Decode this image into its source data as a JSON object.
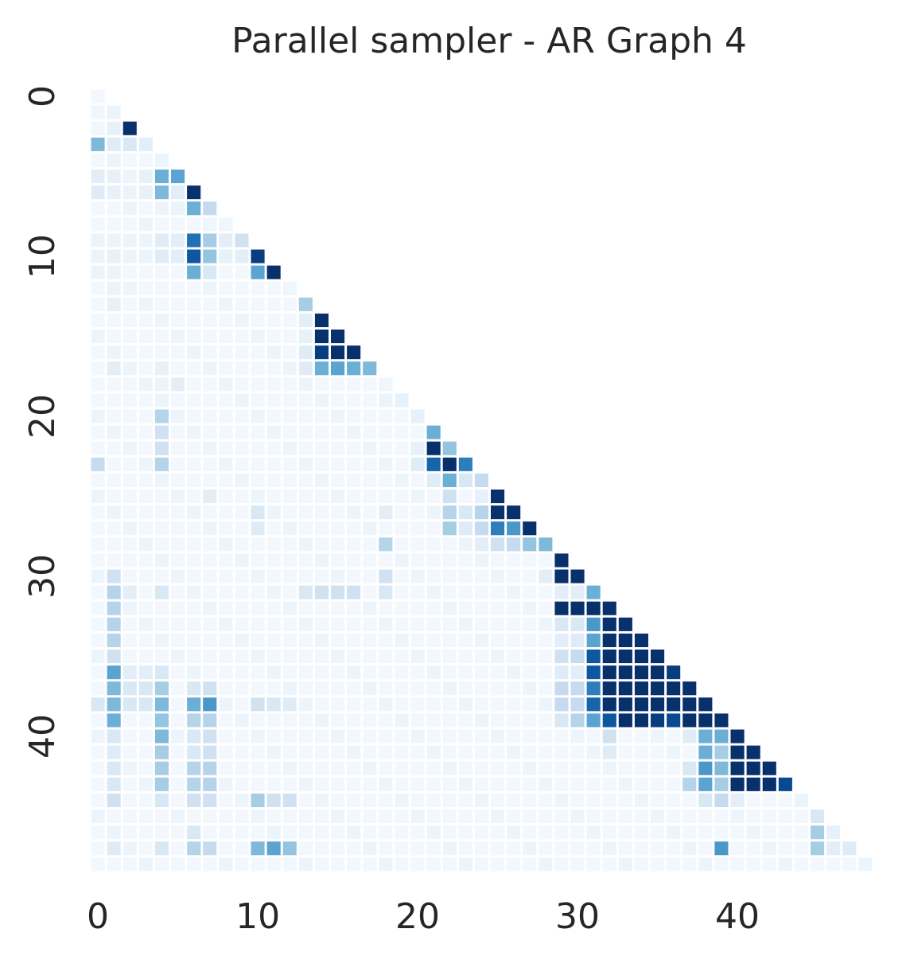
{
  "chart_data": {
    "type": "heatmap",
    "title": "Parallel sampler - AR Graph 4",
    "xlabel": "",
    "ylabel": "",
    "size": 49,
    "x_ticks": [
      0,
      10,
      20,
      30,
      40
    ],
    "y_ticks": [
      0,
      10,
      20,
      30,
      40
    ],
    "mask": "upper-triangle",
    "colormap": "Blues",
    "colorbar": false,
    "grid": false,
    "value_range": [
      0,
      1
    ],
    "cells": [
      [
        0,
        0,
        0.02
      ],
      [
        1,
        0,
        0.04
      ],
      [
        1,
        1,
        0.06
      ],
      [
        2,
        0,
        0.03
      ],
      [
        2,
        1,
        0.08
      ],
      [
        2,
        2,
        1.0
      ],
      [
        3,
        0,
        0.45
      ],
      [
        3,
        1,
        0.12
      ],
      [
        3,
        2,
        0.15
      ],
      [
        3,
        3,
        0.1
      ],
      [
        4,
        1,
        0.06
      ],
      [
        5,
        0,
        0.1
      ],
      [
        5,
        1,
        0.08
      ],
      [
        5,
        2,
        0.05
      ],
      [
        5,
        3,
        0.08
      ],
      [
        5,
        4,
        0.5
      ],
      [
        5,
        5,
        0.55
      ],
      [
        6,
        0,
        0.12
      ],
      [
        6,
        1,
        0.08
      ],
      [
        6,
        2,
        0.06
      ],
      [
        6,
        3,
        0.08
      ],
      [
        6,
        4,
        0.45
      ],
      [
        6,
        5,
        0.1
      ],
      [
        6,
        6,
        1.0
      ],
      [
        7,
        4,
        0.05
      ],
      [
        7,
        5,
        0.06
      ],
      [
        7,
        6,
        0.5
      ],
      [
        7,
        7,
        0.25
      ],
      [
        8,
        7,
        0.04
      ],
      [
        8,
        8,
        0.04
      ],
      [
        9,
        0,
        0.06
      ],
      [
        9,
        1,
        0.06
      ],
      [
        9,
        2,
        0.05
      ],
      [
        9,
        3,
        0.05
      ],
      [
        9,
        4,
        0.12
      ],
      [
        9,
        5,
        0.1
      ],
      [
        9,
        6,
        0.75
      ],
      [
        9,
        7,
        0.35
      ],
      [
        9,
        8,
        0.1
      ],
      [
        9,
        9,
        0.2
      ],
      [
        10,
        0,
        0.06
      ],
      [
        10,
        1,
        0.08
      ],
      [
        10,
        2,
        0.06
      ],
      [
        10,
        3,
        0.06
      ],
      [
        10,
        4,
        0.12
      ],
      [
        10,
        5,
        0.1
      ],
      [
        10,
        6,
        0.85
      ],
      [
        10,
        7,
        0.4
      ],
      [
        10,
        8,
        0.08
      ],
      [
        10,
        9,
        0.1
      ],
      [
        10,
        10,
        0.95
      ],
      [
        11,
        0,
        0.06
      ],
      [
        11,
        1,
        0.06
      ],
      [
        11,
        6,
        0.5
      ],
      [
        11,
        7,
        0.15
      ],
      [
        11,
        10,
        0.55
      ],
      [
        11,
        11,
        1.0
      ],
      [
        12,
        1,
        0.06
      ],
      [
        12,
        12,
        0.04
      ],
      [
        13,
        1,
        0.08
      ],
      [
        13,
        13,
        0.35
      ],
      [
        14,
        13,
        0.1
      ],
      [
        14,
        14,
        1.0
      ],
      [
        15,
        13,
        0.08
      ],
      [
        15,
        14,
        1.0
      ],
      [
        15,
        15,
        1.0
      ],
      [
        16,
        13,
        0.12
      ],
      [
        16,
        14,
        0.95
      ],
      [
        16,
        15,
        1.0
      ],
      [
        16,
        16,
        1.0
      ],
      [
        17,
        1,
        0.1
      ],
      [
        17,
        4,
        0.08
      ],
      [
        17,
        13,
        0.12
      ],
      [
        17,
        14,
        0.5
      ],
      [
        17,
        15,
        0.55
      ],
      [
        17,
        16,
        0.5
      ],
      [
        17,
        17,
        0.45
      ],
      [
        18,
        4,
        0.06
      ],
      [
        18,
        5,
        0.1
      ],
      [
        18,
        18,
        0.04
      ],
      [
        19,
        18,
        0.06
      ],
      [
        19,
        19,
        0.08
      ],
      [
        20,
        4,
        0.3
      ],
      [
        20,
        20,
        0.08
      ],
      [
        21,
        4,
        0.2
      ],
      [
        21,
        21,
        0.5
      ],
      [
        22,
        4,
        0.2
      ],
      [
        22,
        20,
        0.08
      ],
      [
        22,
        21,
        1.0
      ],
      [
        22,
        22,
        0.4
      ],
      [
        23,
        0,
        0.25
      ],
      [
        23,
        4,
        0.3
      ],
      [
        23,
        20,
        0.12
      ],
      [
        23,
        21,
        0.8
      ],
      [
        23,
        22,
        1.0
      ],
      [
        23,
        23,
        0.7
      ],
      [
        24,
        21,
        0.12
      ],
      [
        24,
        22,
        0.5
      ],
      [
        24,
        23,
        0.15
      ],
      [
        24,
        24,
        0.25
      ],
      [
        25,
        7,
        0.1
      ],
      [
        25,
        22,
        0.2
      ],
      [
        25,
        24,
        0.08
      ],
      [
        25,
        25,
        1.0
      ],
      [
        26,
        10,
        0.15
      ],
      [
        26,
        18,
        0.1
      ],
      [
        26,
        22,
        0.3
      ],
      [
        26,
        23,
        0.15
      ],
      [
        26,
        24,
        0.3
      ],
      [
        26,
        25,
        1.0
      ],
      [
        26,
        26,
        1.0
      ],
      [
        27,
        10,
        0.12
      ],
      [
        27,
        22,
        0.35
      ],
      [
        27,
        23,
        0.12
      ],
      [
        27,
        24,
        0.25
      ],
      [
        27,
        25,
        0.7
      ],
      [
        27,
        26,
        0.6
      ],
      [
        27,
        27,
        1.0
      ],
      [
        28,
        18,
        0.3
      ],
      [
        28,
        24,
        0.1
      ],
      [
        28,
        25,
        0.2
      ],
      [
        28,
        26,
        0.25
      ],
      [
        28,
        27,
        0.4
      ],
      [
        28,
        28,
        0.45
      ],
      [
        29,
        29,
        1.0
      ],
      [
        30,
        1,
        0.2
      ],
      [
        30,
        18,
        0.2
      ],
      [
        30,
        28,
        0.1
      ],
      [
        30,
        29,
        1.0
      ],
      [
        30,
        30,
        1.0
      ],
      [
        31,
        1,
        0.3
      ],
      [
        31,
        2,
        0.1
      ],
      [
        31,
        4,
        0.15
      ],
      [
        31,
        13,
        0.15
      ],
      [
        31,
        14,
        0.2
      ],
      [
        31,
        15,
        0.2
      ],
      [
        31,
        16,
        0.2
      ],
      [
        31,
        18,
        0.15
      ],
      [
        31,
        29,
        0.1
      ],
      [
        31,
        30,
        0.1
      ],
      [
        31,
        31,
        0.5
      ],
      [
        32,
        1,
        0.3
      ],
      [
        32,
        29,
        1.0
      ],
      [
        32,
        30,
        1.0
      ],
      [
        32,
        31,
        1.0
      ],
      [
        32,
        32,
        1.0
      ],
      [
        33,
        1,
        0.3
      ],
      [
        33,
        29,
        0.15
      ],
      [
        33,
        30,
        0.15
      ],
      [
        33,
        31,
        0.6
      ],
      [
        33,
        32,
        1.0
      ],
      [
        33,
        33,
        1.0
      ],
      [
        34,
        1,
        0.3
      ],
      [
        34,
        29,
        0.1
      ],
      [
        34,
        30,
        0.12
      ],
      [
        34,
        31,
        0.55
      ],
      [
        34,
        32,
        1.0
      ],
      [
        34,
        33,
        1.0
      ],
      [
        34,
        34,
        1.0
      ],
      [
        35,
        1,
        0.2
      ],
      [
        35,
        29,
        0.2
      ],
      [
        35,
        30,
        0.25
      ],
      [
        35,
        31,
        0.85
      ],
      [
        35,
        32,
        1.0
      ],
      [
        35,
        33,
        1.0
      ],
      [
        35,
        34,
        1.0
      ],
      [
        35,
        35,
        1.0
      ],
      [
        36,
        1,
        0.55
      ],
      [
        36,
        2,
        0.1
      ],
      [
        36,
        3,
        0.1
      ],
      [
        36,
        4,
        0.15
      ],
      [
        36,
        29,
        0.12
      ],
      [
        36,
        30,
        0.1
      ],
      [
        36,
        31,
        0.85
      ],
      [
        36,
        32,
        1.0
      ],
      [
        36,
        33,
        1.0
      ],
      [
        36,
        34,
        1.0
      ],
      [
        36,
        35,
        1.0
      ],
      [
        36,
        36,
        0.95
      ],
      [
        37,
        1,
        0.45
      ],
      [
        37,
        2,
        0.15
      ],
      [
        37,
        3,
        0.15
      ],
      [
        37,
        4,
        0.35
      ],
      [
        37,
        6,
        0.15
      ],
      [
        37,
        7,
        0.2
      ],
      [
        37,
        29,
        0.25
      ],
      [
        37,
        30,
        0.25
      ],
      [
        37,
        31,
        0.7
      ],
      [
        37,
        32,
        1.0
      ],
      [
        37,
        33,
        1.0
      ],
      [
        37,
        34,
        1.0
      ],
      [
        37,
        35,
        1.0
      ],
      [
        37,
        36,
        1.0
      ],
      [
        37,
        37,
        1.0
      ],
      [
        38,
        0,
        0.15
      ],
      [
        38,
        1,
        0.45
      ],
      [
        38,
        2,
        0.15
      ],
      [
        38,
        3,
        0.15
      ],
      [
        38,
        4,
        0.45
      ],
      [
        38,
        6,
        0.5
      ],
      [
        38,
        7,
        0.6
      ],
      [
        38,
        10,
        0.2
      ],
      [
        38,
        11,
        0.15
      ],
      [
        38,
        12,
        0.12
      ],
      [
        38,
        29,
        0.25
      ],
      [
        38,
        30,
        0.25
      ],
      [
        38,
        31,
        0.8
      ],
      [
        38,
        32,
        1.0
      ],
      [
        38,
        33,
        1.0
      ],
      [
        38,
        34,
        1.0
      ],
      [
        38,
        35,
        1.0
      ],
      [
        38,
        36,
        1.0
      ],
      [
        38,
        37,
        1.0
      ],
      [
        38,
        38,
        1.0
      ],
      [
        39,
        1,
        0.5
      ],
      [
        39,
        4,
        0.4
      ],
      [
        39,
        6,
        0.3
      ],
      [
        39,
        7,
        0.3
      ],
      [
        39,
        29,
        0.15
      ],
      [
        39,
        30,
        0.3
      ],
      [
        39,
        31,
        0.55
      ],
      [
        39,
        32,
        0.85
      ],
      [
        39,
        33,
        1.0
      ],
      [
        39,
        34,
        1.0
      ],
      [
        39,
        35,
        0.95
      ],
      [
        39,
        36,
        0.9
      ],
      [
        39,
        37,
        1.0
      ],
      [
        39,
        38,
        1.0
      ],
      [
        39,
        39,
        1.0
      ],
      [
        40,
        1,
        0.15
      ],
      [
        40,
        4,
        0.45
      ],
      [
        40,
        6,
        0.15
      ],
      [
        40,
        7,
        0.2
      ],
      [
        40,
        32,
        0.2
      ],
      [
        40,
        37,
        0.12
      ],
      [
        40,
        38,
        0.5
      ],
      [
        40,
        39,
        0.5
      ],
      [
        40,
        40,
        1.0
      ],
      [
        41,
        1,
        0.12
      ],
      [
        41,
        4,
        0.35
      ],
      [
        41,
        6,
        0.15
      ],
      [
        41,
        7,
        0.2
      ],
      [
        41,
        32,
        0.12
      ],
      [
        41,
        38,
        0.5
      ],
      [
        41,
        39,
        0.35
      ],
      [
        41,
        40,
        1.0
      ],
      [
        41,
        41,
        1.0
      ],
      [
        42,
        1,
        0.15
      ],
      [
        42,
        4,
        0.35
      ],
      [
        42,
        6,
        0.3
      ],
      [
        42,
        7,
        0.3
      ],
      [
        42,
        37,
        0.15
      ],
      [
        42,
        38,
        0.6
      ],
      [
        42,
        39,
        0.45
      ],
      [
        42,
        40,
        1.0
      ],
      [
        42,
        41,
        1.0
      ],
      [
        42,
        42,
        1.0
      ],
      [
        43,
        1,
        0.15
      ],
      [
        43,
        4,
        0.35
      ],
      [
        43,
        6,
        0.3
      ],
      [
        43,
        7,
        0.3
      ],
      [
        43,
        37,
        0.3
      ],
      [
        43,
        38,
        0.55
      ],
      [
        43,
        39,
        0.35
      ],
      [
        43,
        40,
        1.0
      ],
      [
        43,
        41,
        1.0
      ],
      [
        43,
        42,
        1.0
      ],
      [
        43,
        43,
        0.9
      ],
      [
        44,
        1,
        0.2
      ],
      [
        44,
        4,
        0.15
      ],
      [
        44,
        6,
        0.2
      ],
      [
        44,
        7,
        0.2
      ],
      [
        44,
        10,
        0.35
      ],
      [
        44,
        11,
        0.2
      ],
      [
        44,
        12,
        0.2
      ],
      [
        44,
        38,
        0.15
      ],
      [
        44,
        39,
        0.25
      ],
      [
        44,
        40,
        0.1
      ],
      [
        44,
        44,
        0.06
      ],
      [
        45,
        45,
        0.15
      ],
      [
        46,
        6,
        0.15
      ],
      [
        46,
        45,
        0.35
      ],
      [
        46,
        46,
        0.08
      ],
      [
        47,
        1,
        0.12
      ],
      [
        47,
        4,
        0.15
      ],
      [
        47,
        6,
        0.3
      ],
      [
        47,
        7,
        0.25
      ],
      [
        47,
        10,
        0.45
      ],
      [
        47,
        11,
        0.55
      ],
      [
        47,
        12,
        0.4
      ],
      [
        47,
        39,
        0.6
      ],
      [
        47,
        45,
        0.35
      ],
      [
        47,
        46,
        0.1
      ],
      [
        47,
        47,
        0.12
      ],
      [
        48,
        48,
        0.05
      ]
    ]
  }
}
